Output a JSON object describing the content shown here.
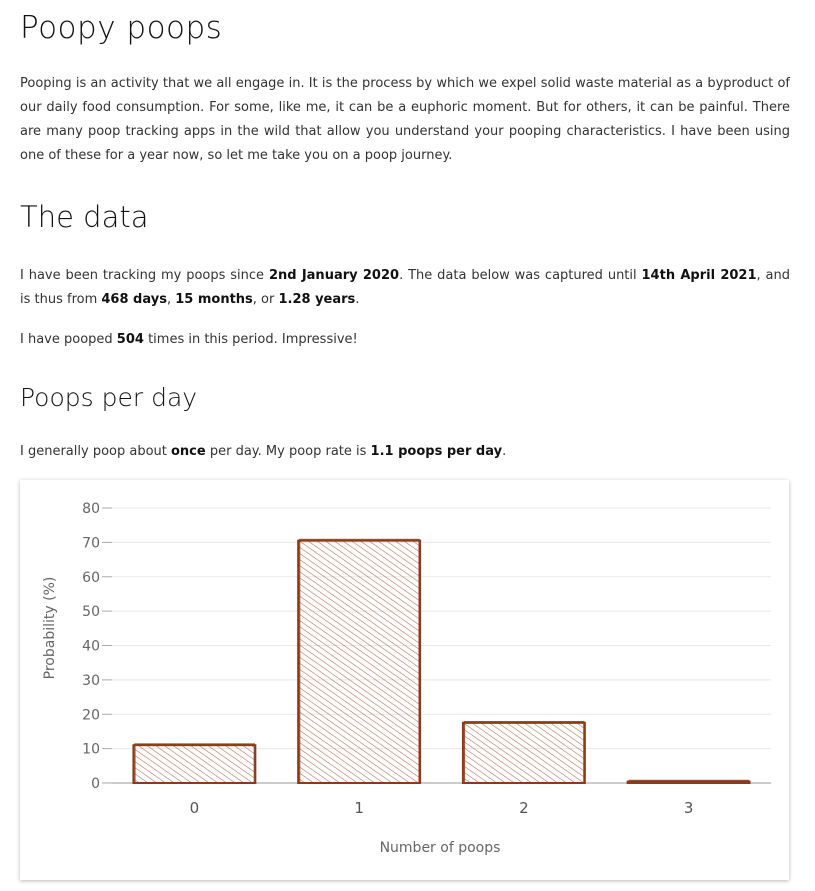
{
  "title": "Poopy poops",
  "intro": "Pooping is an activity that we all engage in. It is the process by which we expel solid waste material as a byproduct of our daily food consumption. For some, like me, it can be a euphoric moment. But for others, it can be painful. There are many poop tracking apps in the wild that allow you understand your pooping characteristics. I have been using one of these for a year now, so let me take you on a poop journey.",
  "data_section": {
    "heading": "The data",
    "p1_a": "I have been tracking my poops since ",
    "start_date": "2nd January 2020",
    "p1_b": ". The data below was captured until ",
    "end_date": "14th April 2021",
    "p1_c": ", and is thus from ",
    "days": "468 days",
    "sep1": ", ",
    "months": "15 months",
    "sep2": ", or ",
    "years": "1.28 years",
    "p1_d": ".",
    "p2_a": "I have pooped ",
    "count": "504",
    "p2_b": " times in this period. Impressive!"
  },
  "rate_section": {
    "heading": "Poops per day",
    "p_a": "I generally poop about ",
    "once": "once",
    "p_b": " per day. My poop rate is ",
    "rate": "1.1 poops per day",
    "p_c": "."
  },
  "chart_data": {
    "type": "bar",
    "categories": [
      "0",
      "1",
      "2",
      "3"
    ],
    "values": [
      11,
      70.5,
      17.5,
      0.4
    ],
    "xlabel": "Number of poops",
    "ylabel": "Probability (%)",
    "ylim": [
      0,
      80
    ],
    "yticks": [
      0,
      10,
      20,
      30,
      40,
      50,
      60,
      70,
      80
    ],
    "grid": true,
    "bar_color": "#8b3a1a",
    "fill_color": "#c2876c"
  }
}
